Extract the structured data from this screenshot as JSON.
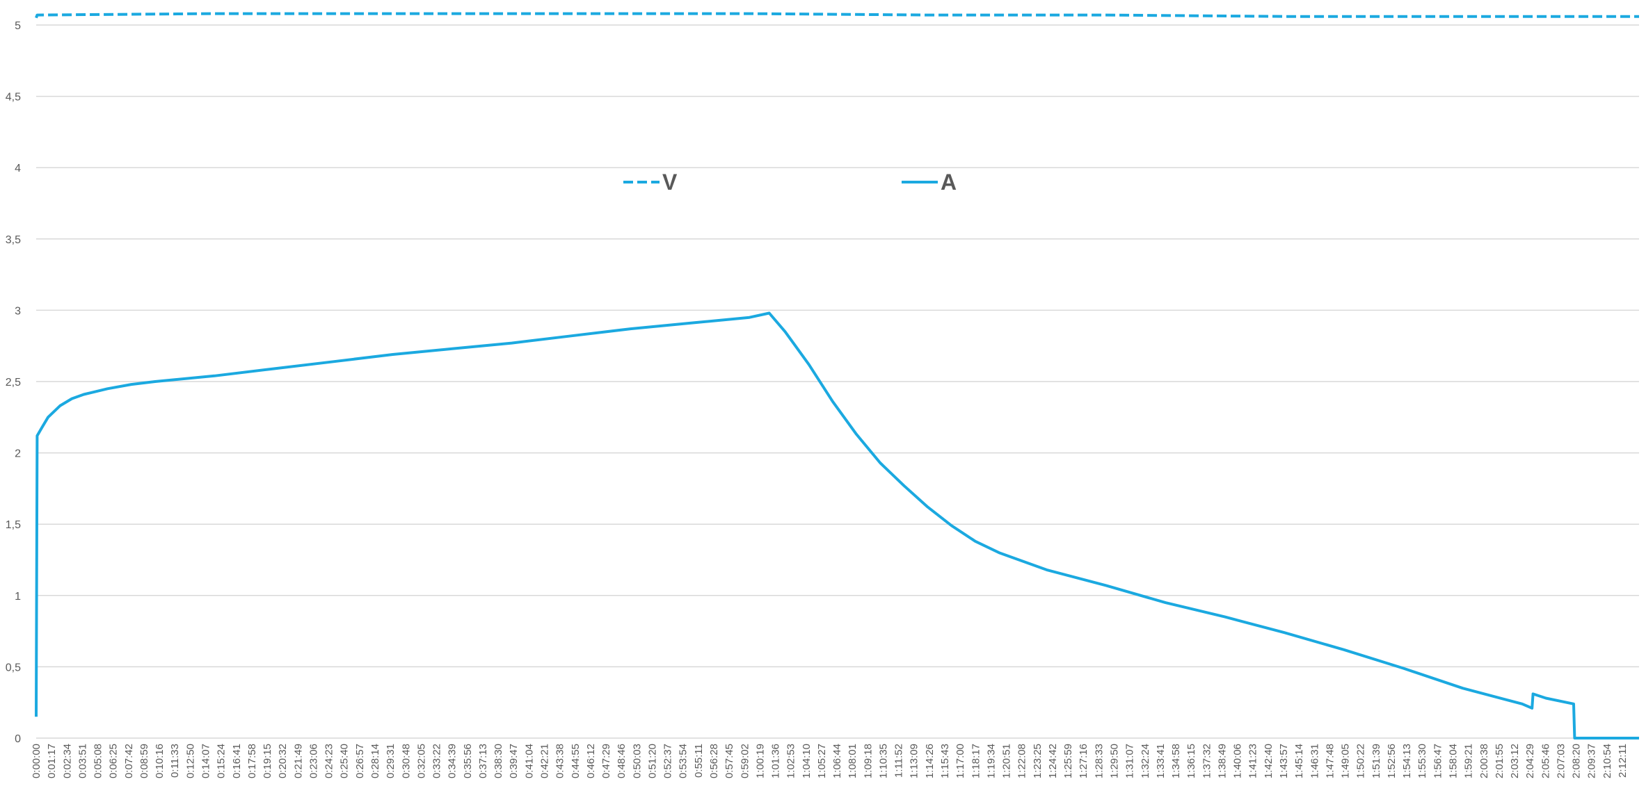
{
  "chart_data": {
    "type": "line",
    "title": "",
    "xlabel": "",
    "ylabel": "",
    "ylim": [
      0,
      5
    ],
    "y_ticks": [
      "0",
      "0,5",
      "1",
      "1,5",
      "2",
      "2,5",
      "3",
      "3,5",
      "4",
      "4,5",
      "5"
    ],
    "grid": true,
    "legend_position": "top-center",
    "x_ticks": [
      "0:00:00",
      "0:01:17",
      "0:02:34",
      "0:03:51",
      "0:05:08",
      "0:06:25",
      "0:07:42",
      "0:08:59",
      "0:10:16",
      "0:11:33",
      "0:12:50",
      "0:14:07",
      "0:15:24",
      "0:16:41",
      "0:17:58",
      "0:19:15",
      "0:20:32",
      "0:21:49",
      "0:23:06",
      "0:24:23",
      "0:25:40",
      "0:26:57",
      "0:28:14",
      "0:29:31",
      "0:30:48",
      "0:32:05",
      "0:33:22",
      "0:34:39",
      "0:35:56",
      "0:37:13",
      "0:38:30",
      "0:39:47",
      "0:41:04",
      "0:42:21",
      "0:43:38",
      "0:44:55",
      "0:46:12",
      "0:47:29",
      "0:48:46",
      "0:50:03",
      "0:51:20",
      "0:52:37",
      "0:53:54",
      "0:55:11",
      "0:56:28",
      "0:57:45",
      "0:59:02",
      "1:00:19",
      "1:01:36",
      "1:02:53",
      "1:04:10",
      "1:05:27",
      "1:06:44",
      "1:08:01",
      "1:09:18",
      "1:10:35",
      "1:11:52",
      "1:13:09",
      "1:14:26",
      "1:15:43",
      "1:17:00",
      "1:18:17",
      "1:19:34",
      "1:20:51",
      "1:22:08",
      "1:23:25",
      "1:24:42",
      "1:25:59",
      "1:27:16",
      "1:28:33",
      "1:29:50",
      "1:31:07",
      "1:32:24",
      "1:33:41",
      "1:34:58",
      "1:36:15",
      "1:37:32",
      "1:38:49",
      "1:40:06",
      "1:41:23",
      "1:42:40",
      "1:43:57",
      "1:45:14",
      "1:46:31",
      "1:47:48",
      "1:49:05",
      "1:50:22",
      "1:51:39",
      "1:52:56",
      "1:54:13",
      "1:55:30",
      "1:56:47",
      "1:58:04",
      "1:59:21",
      "2:00:38",
      "2:01:55",
      "2:03:12",
      "2:04:29",
      "2:05:46",
      "2:07:03",
      "2:08:20",
      "2:09:37",
      "2:10:54",
      "2:12:11"
    ],
    "x_range_seconds": [
      0,
      8090
    ],
    "series": [
      {
        "name": "V",
        "color": "#1ba9e0",
        "dash": true,
        "points": [
          [
            "0:00:00",
            5.05
          ],
          [
            "0:00:05",
            5.07
          ],
          [
            "0:15:00",
            5.08
          ],
          [
            "0:30:00",
            5.08
          ],
          [
            "0:45:00",
            5.08
          ],
          [
            "1:00:00",
            5.08
          ],
          [
            "1:15:00",
            5.07
          ],
          [
            "1:30:00",
            5.07
          ],
          [
            "1:45:00",
            5.06
          ],
          [
            "2:00:00",
            5.06
          ],
          [
            "2:14:50",
            5.06
          ]
        ]
      },
      {
        "name": "A",
        "color": "#1ba9e0",
        "dash": false,
        "points": [
          [
            "0:00:00",
            0.15
          ],
          [
            "0:00:05",
            2.12
          ],
          [
            "0:00:30",
            2.18
          ],
          [
            "0:01:00",
            2.25
          ],
          [
            "0:02:00",
            2.33
          ],
          [
            "0:03:00",
            2.38
          ],
          [
            "0:04:00",
            2.41
          ],
          [
            "0:05:00",
            2.43
          ],
          [
            "0:06:00",
            2.45
          ],
          [
            "0:08:00",
            2.48
          ],
          [
            "0:10:00",
            2.5
          ],
          [
            "0:15:00",
            2.54
          ],
          [
            "0:20:00",
            2.59
          ],
          [
            "0:25:00",
            2.64
          ],
          [
            "0:30:00",
            2.69
          ],
          [
            "0:35:00",
            2.73
          ],
          [
            "0:40:00",
            2.77
          ],
          [
            "0:45:00",
            2.82
          ],
          [
            "0:50:00",
            2.87
          ],
          [
            "0:55:00",
            2.91
          ],
          [
            "1:00:00",
            2.95
          ],
          [
            "1:01:40",
            2.98
          ],
          [
            "1:03:00",
            2.85
          ],
          [
            "1:05:00",
            2.62
          ],
          [
            "1:07:00",
            2.36
          ],
          [
            "1:09:00",
            2.13
          ],
          [
            "1:11:00",
            1.93
          ],
          [
            "1:13:00",
            1.77
          ],
          [
            "1:15:00",
            1.62
          ],
          [
            "1:17:00",
            1.49
          ],
          [
            "1:19:00",
            1.38
          ],
          [
            "1:21:00",
            1.3
          ],
          [
            "1:25:00",
            1.18
          ],
          [
            "1:30:00",
            1.07
          ],
          [
            "1:35:00",
            0.95
          ],
          [
            "1:40:00",
            0.85
          ],
          [
            "1:45:00",
            0.74
          ],
          [
            "1:50:00",
            0.62
          ],
          [
            "1:55:00",
            0.49
          ],
          [
            "2:00:00",
            0.35
          ],
          [
            "2:05:00",
            0.24
          ],
          [
            "2:05:50",
            0.21
          ],
          [
            "2:05:55",
            0.31
          ],
          [
            "2:07:00",
            0.28
          ],
          [
            "2:09:20",
            0.24
          ],
          [
            "2:09:25",
            0.0
          ],
          [
            "2:14:50",
            0.0
          ]
        ]
      }
    ]
  }
}
